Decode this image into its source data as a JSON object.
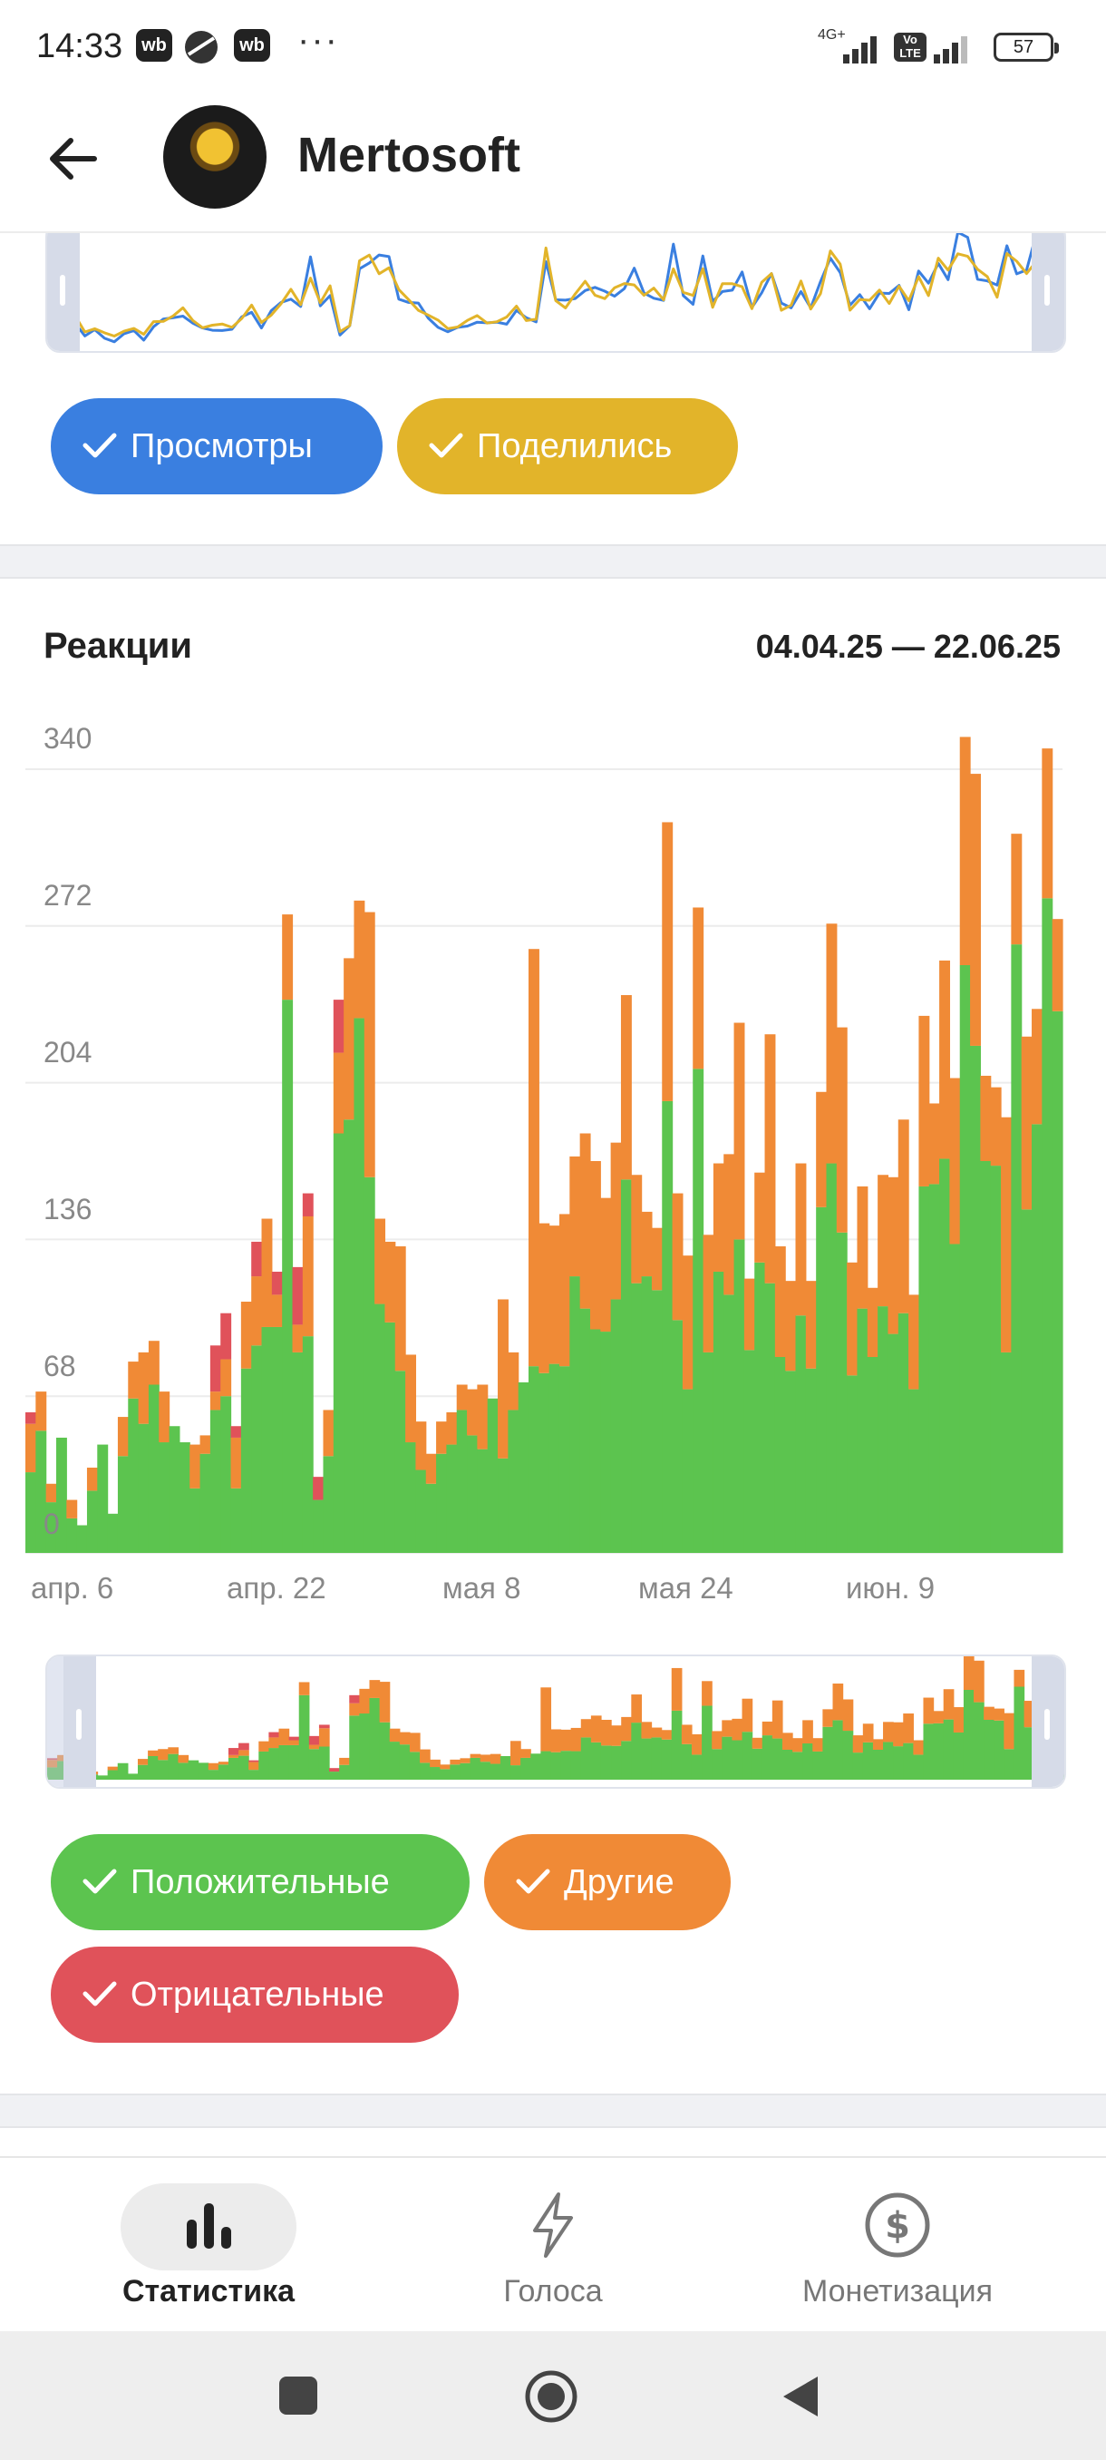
{
  "status_bar": {
    "time": "14:33",
    "badge_1": "wb",
    "badge_2": "wb",
    "more": "···",
    "network": "4G+",
    "volte": "Vo LTE",
    "battery": "57"
  },
  "header": {
    "channel_name": "Mertosoft"
  },
  "views_chart": {
    "series_a_color": "#3a7fe0",
    "series_b_color": "#e2b42a"
  },
  "views_chips": [
    {
      "label": "Просмотры",
      "color": "#3a7fe0"
    },
    {
      "label": "Поделились",
      "color": "#e2b42a"
    }
  ],
  "reactions": {
    "title": "Реакции",
    "date_range": "04.04.25 — 22.06.25",
    "y_ticks": [
      "340",
      "272",
      "204",
      "136",
      "68",
      "0"
    ],
    "x_ticks": [
      "апр. 6",
      "апр. 22",
      "мая 8",
      "мая 24",
      "июн. 9"
    ],
    "chips": [
      {
        "label": "Положительные",
        "color": "#5cc44f"
      },
      {
        "label": "Другие",
        "color": "#f08a36"
      },
      {
        "label": "Отрицательные",
        "color": "#e0525a"
      }
    ]
  },
  "chart_data": {
    "type": "bar",
    "stacked": true,
    "ylim": [
      0,
      340
    ],
    "x_tick_labels": [
      "апр. 6",
      "апр. 22",
      "мая 8",
      "мая 24",
      "июн. 9"
    ],
    "period": "04.04.25 — 22.06.25",
    "series": [
      {
        "name": "Положительные",
        "color": "#5cc44f",
        "values": [
          35,
          53,
          22,
          50,
          15,
          12,
          27,
          47,
          17,
          42,
          67,
          56,
          73,
          48,
          55,
          48,
          28,
          43,
          62,
          68,
          28,
          80,
          90,
          98,
          98,
          240,
          87,
          94,
          23,
          42,
          182,
          188,
          232,
          163,
          108,
          100,
          79,
          48,
          36,
          30,
          43,
          47,
          62,
          51,
          45,
          67,
          41,
          62,
          74,
          81,
          78,
          82,
          81,
          120,
          106,
          97,
          96,
          110,
          162,
          117,
          120,
          114,
          196,
          101,
          71,
          210,
          87,
          122,
          112,
          136,
          88,
          126,
          117,
          85,
          79,
          103,
          80,
          150,
          169,
          139,
          77,
          106,
          85,
          107,
          95,
          104,
          71,
          159,
          160,
          171,
          134,
          255,
          220,
          170,
          168,
          87,
          264,
          149,
          186,
          284,
          235
        ]
      },
      {
        "name": "Другие",
        "color": "#f08a36",
        "values": [
          21,
          17,
          8,
          0,
          8,
          0,
          10,
          0,
          0,
          17,
          16,
          31,
          19,
          22,
          0,
          0,
          19,
          8,
          8,
          16,
          22,
          29,
          30,
          47,
          14,
          37,
          12,
          52,
          0,
          20,
          35,
          70,
          51,
          115,
          37,
          35,
          54,
          38,
          21,
          13,
          14,
          14,
          11,
          20,
          28,
          0,
          69,
          25,
          0,
          181,
          65,
          60,
          66,
          52,
          76,
          73,
          58,
          68,
          80,
          47,
          28,
          27,
          121,
          55,
          58,
          70,
          51,
          47,
          61,
          94,
          31,
          39,
          108,
          48,
          39,
          66,
          38,
          50,
          104,
          89,
          49,
          53,
          30,
          57,
          68,
          84,
          41,
          74,
          35,
          86,
          72,
          99,
          118,
          37,
          34,
          102,
          48,
          75,
          50,
          65,
          40
        ]
      },
      {
        "name": "Отрицательные",
        "color": "#e0525a",
        "values": [
          5,
          0,
          0,
          0,
          0,
          0,
          0,
          0,
          0,
          0,
          0,
          0,
          0,
          0,
          0,
          0,
          0,
          0,
          20,
          20,
          5,
          0,
          15,
          0,
          10,
          0,
          25,
          10,
          10,
          0,
          23,
          0,
          0,
          0,
          0,
          0,
          0,
          0,
          0,
          0,
          0,
          0,
          0,
          0,
          0,
          0,
          0,
          0,
          0,
          0,
          0,
          0,
          0,
          0,
          0,
          0,
          0,
          0,
          0,
          0,
          0,
          0,
          0,
          0,
          0,
          0,
          0,
          0,
          0,
          0,
          0,
          0,
          0,
          0,
          0,
          0,
          0,
          0,
          0,
          0,
          0,
          0,
          0,
          0,
          0,
          0,
          0,
          0,
          0,
          0,
          0,
          0,
          0,
          0,
          0,
          0,
          0,
          0,
          0,
          0,
          0
        ]
      }
    ]
  },
  "nav": [
    {
      "label": "Статистика",
      "icon": "bar-chart-icon",
      "active": true
    },
    {
      "label": "Голоса",
      "icon": "lightning-icon",
      "active": false
    },
    {
      "label": "Монетизация",
      "icon": "dollar-coin-icon",
      "active": false
    }
  ]
}
